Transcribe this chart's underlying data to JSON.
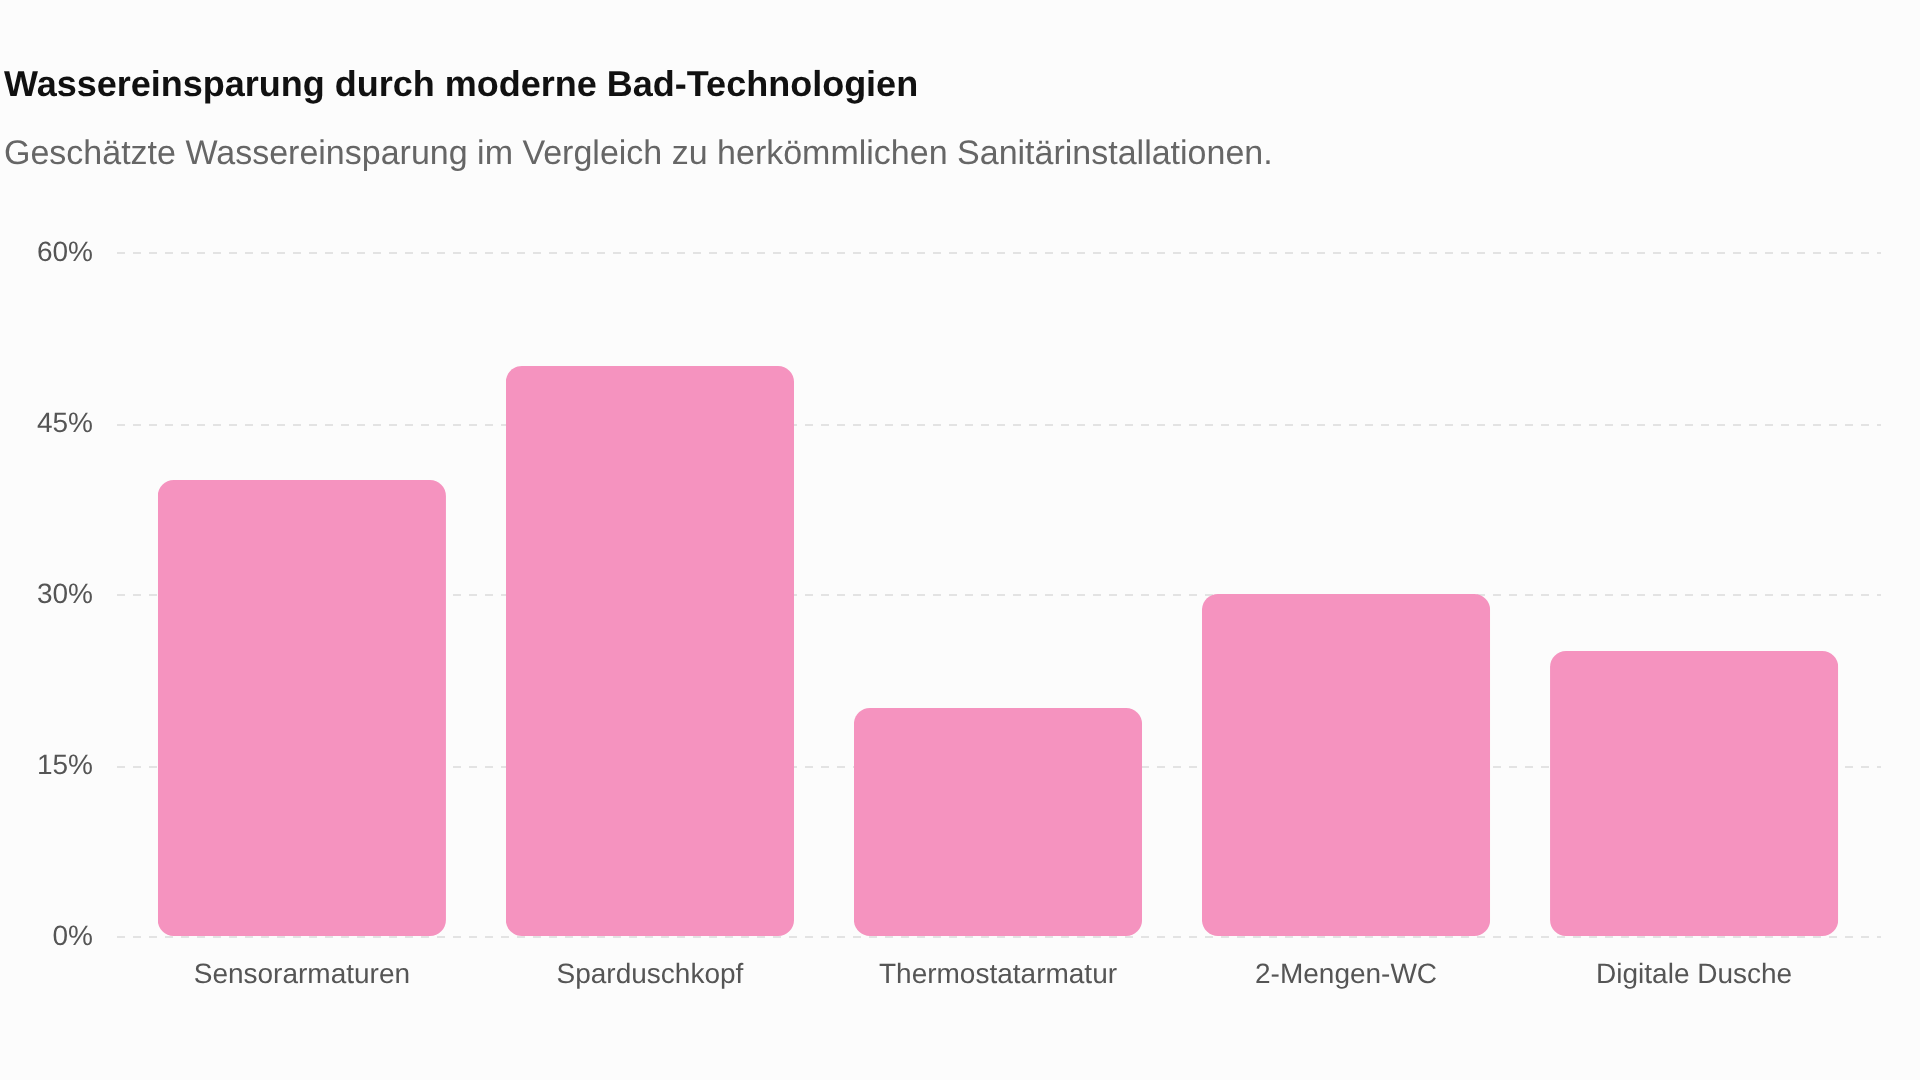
{
  "chart_data": {
    "type": "bar",
    "title": "Wassereinsparung durch moderne Bad-Technologien",
    "subtitle": "Geschätzte Wassereinsparung im Vergleich zu herkömmlichen Sanitärinstallationen.",
    "categories": [
      "Sensorarmaturen",
      "Sparduschkopf",
      "Thermostatarmatur",
      "2-Mengen-WC",
      "Digitale Dusche"
    ],
    "values": [
      40,
      50,
      20,
      30,
      25
    ],
    "color": "#f593bf",
    "ylim": [
      0,
      60
    ],
    "yticks": [
      {
        "value": 0,
        "label": "0%"
      },
      {
        "value": 15,
        "label": "15%"
      },
      {
        "value": 30,
        "label": "30%"
      },
      {
        "value": 45,
        "label": "45%"
      },
      {
        "value": 60,
        "label": "60%"
      }
    ],
    "grid": "y"
  }
}
